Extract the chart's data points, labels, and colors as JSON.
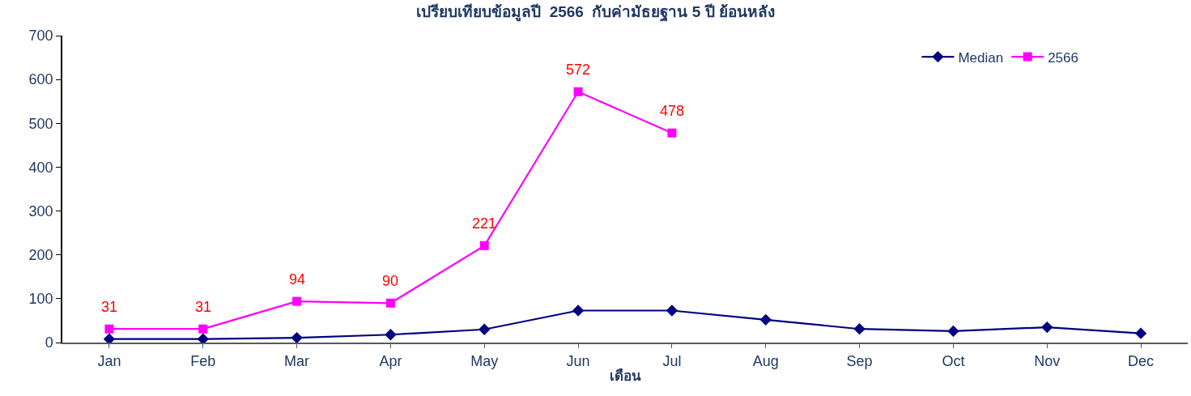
{
  "chart_data": {
    "type": "line",
    "title": "เปรียบเทียบข้อมูลปี  2566  กับค่ามัธยฐาน 5 ปี ย้อนหลัง",
    "xlabel": "เดือน",
    "categories": [
      "Jan",
      "Feb",
      "Mar",
      "Apr",
      "May",
      "Jun",
      "Jul",
      "Aug",
      "Sep",
      "Oct",
      "Nov",
      "Dec"
    ],
    "series": [
      {
        "name": "Median",
        "color": "#000080",
        "marker": "diamond",
        "values": [
          8,
          8,
          11,
          18,
          30,
          73,
          73,
          52,
          31,
          26,
          35,
          21
        ]
      },
      {
        "name": "2566",
        "color": "#ff00ff",
        "marker": "square",
        "values": [
          31,
          31,
          94,
          90,
          221,
          572,
          478,
          null,
          null,
          null,
          null,
          null
        ],
        "value_labels": [
          "31",
          "31",
          "94",
          "90",
          "221",
          "572",
          "478",
          null,
          null,
          null,
          null,
          null
        ]
      }
    ],
    "ylim": [
      0,
      700
    ],
    "yticks": [
      0,
      100,
      200,
      300,
      400,
      500,
      600,
      700
    ],
    "legend": "top right"
  }
}
